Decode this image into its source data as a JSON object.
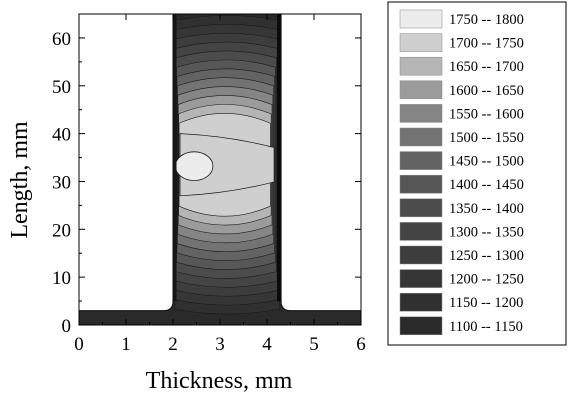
{
  "chart_data": {
    "type": "heatmap",
    "title": "",
    "xlabel": "Thickness, mm",
    "ylabel": "Length, mm",
    "xlim": [
      0,
      6
    ],
    "ylim": [
      0,
      65
    ],
    "x_ticks": [
      "0",
      "1",
      "2",
      "3",
      "4",
      "5",
      "6"
    ],
    "y_ticks": [
      "0",
      "10",
      "20",
      "30",
      "40",
      "50",
      "60"
    ],
    "grid": false,
    "legend_position": "right",
    "specimen": {
      "base_height": 3,
      "neck_left": 2.0,
      "neck_right": 4.3,
      "fillet_radius": 0.2
    },
    "hot_zone": {
      "peak_center": [
        2.45,
        33.2
      ],
      "peak_radius": [
        0.4,
        3.0
      ],
      "warm_center_y": 33.5,
      "warm_half_height": 9.5,
      "warm_extent_x": [
        2.1,
        4.1
      ]
    },
    "legend": [
      {
        "range": "1750  --  1800",
        "color": "#ececec"
      },
      {
        "range": "1700  --  1750",
        "color": "#cfcfcf"
      },
      {
        "range": "1650  --  1700",
        "color": "#b5b5b5"
      },
      {
        "range": "1600  --  1650",
        "color": "#9b9b9b"
      },
      {
        "range": "1550  --  1600",
        "color": "#858585"
      },
      {
        "range": "1500  --  1550",
        "color": "#737373"
      },
      {
        "range": "1450  --  1500",
        "color": "#636363"
      },
      {
        "range": "1400  --  1450",
        "color": "#575757"
      },
      {
        "range": "1350  --  1400",
        "color": "#4c4c4c"
      },
      {
        "range": "1300  --  1350",
        "color": "#444444"
      },
      {
        "range": "1250  --  1300",
        "color": "#3d3d3d"
      },
      {
        "range": "1200  --  1250",
        "color": "#363636"
      },
      {
        "range": "1150  --  1200",
        "color": "#303030"
      },
      {
        "range": "1100  --  1150",
        "color": "#2a2a2a"
      }
    ]
  }
}
